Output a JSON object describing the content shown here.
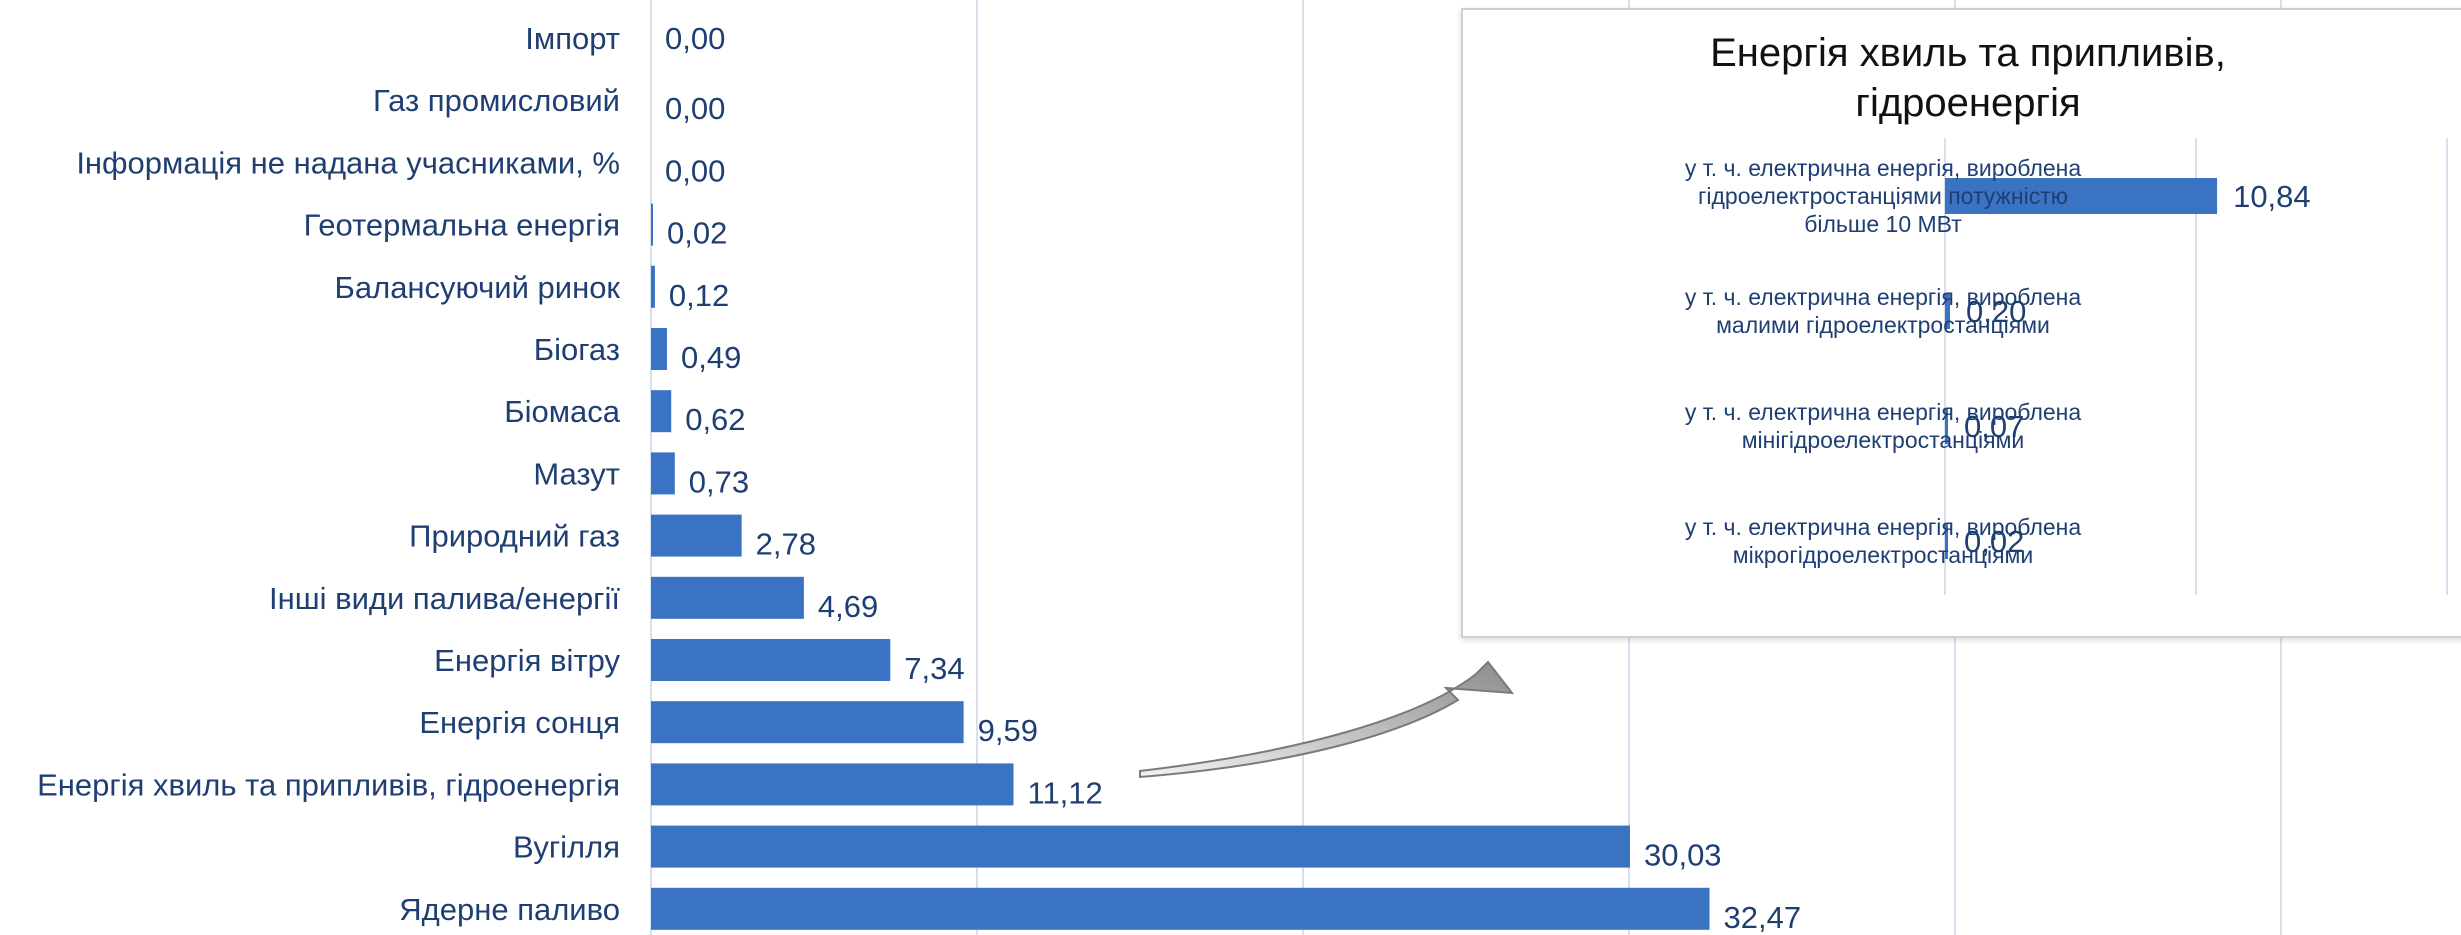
{
  "chart_data": [
    {
      "type": "bar",
      "orientation": "horizontal",
      "categories": [
        "Імпорт",
        "Газ промисловий",
        "Інформація не надана учасниками, %",
        "Геотермальна енергія",
        "Балансуючий ринок",
        "Біогаз",
        "Біомаса",
        "Мазут",
        "Природний газ",
        "Інші види палива/енергії",
        "Енергія вітру",
        "Енергія сонця",
        "Енергія хвиль та припливів, гідроенергія",
        "Вугілля",
        "Ядерне паливо"
      ],
      "values": [
        0.0,
        0.0,
        0.0,
        0.02,
        0.12,
        0.49,
        0.62,
        0.73,
        2.78,
        4.69,
        7.34,
        9.59,
        11.12,
        30.03,
        32.47
      ],
      "value_labels": [
        "0,00",
        "0,00",
        "0,00",
        "0,02",
        "0,12",
        "0,49",
        "0,62",
        "0,73",
        "2,78",
        "4,69",
        "7,34",
        "9,59",
        "11,12",
        "30,03",
        "32,47"
      ],
      "xlim": [
        0,
        60
      ],
      "grid": true,
      "color": "#3a72c4"
    },
    {
      "type": "bar",
      "orientation": "horizontal",
      "title_lines": [
        "Енергія хвиль та припливів,",
        "гідроенергія"
      ],
      "categories": [
        [
          "у т. ч. електрична енергія, вироблена",
          "гідроелектростанціями потужністю",
          "більше 10 МВт"
        ],
        [
          "у т. ч. електрична енергія, вироблена",
          "малими гідроелектростанціями"
        ],
        [
          "у т. ч. електрична енергія, вироблена",
          "мінігідроелектростанціями"
        ],
        [
          "у т. ч. електрична енергія, вироблена",
          "мікрогідроелектростанціями"
        ]
      ],
      "values": [
        10.84,
        0.2,
        0.07,
        0.02
      ],
      "value_labels": [
        "10,84",
        "0,20",
        "0,07",
        "0,02"
      ],
      "xlim": [
        0,
        20
      ],
      "grid": true,
      "color": "#3a72c4"
    }
  ]
}
